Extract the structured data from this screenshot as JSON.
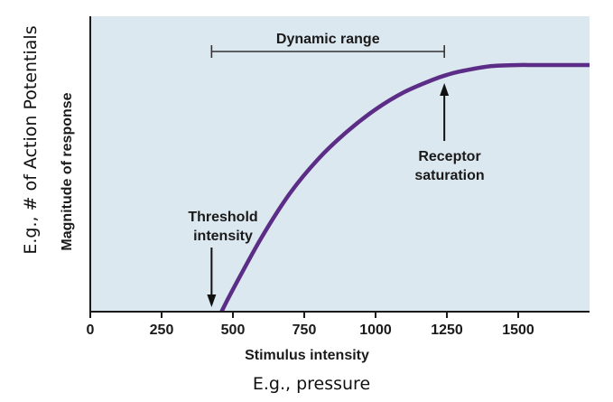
{
  "chart_data": {
    "type": "line",
    "title": "",
    "xlabel": "Stimulus intensity",
    "ylabel": "Magnitude of response",
    "xlim": [
      0,
      1750
    ],
    "ylim": [
      0,
      1
    ],
    "x_ticks": [
      "0",
      "250",
      "500",
      "750",
      "1000",
      "1250",
      "1500"
    ],
    "x_tick_values": [
      0,
      250,
      500,
      750,
      1000,
      1250,
      1500
    ],
    "y_ticks": [],
    "grid": false,
    "series": [
      {
        "color": "#5b2d86",
        "x": [
          460,
          500,
          600,
          700,
          800,
          900,
          1000,
          1100,
          1200,
          1250,
          1300,
          1400,
          1500,
          1550,
          1600,
          1700,
          1750
        ],
        "y": [
          0,
          0.09,
          0.3,
          0.48,
          0.62,
          0.73,
          0.82,
          0.89,
          0.94,
          0.96,
          0.975,
          0.995,
          1.0,
          1.0,
          1.0,
          1.0,
          1.0
        ]
      }
    ],
    "annotations": {
      "dynamic_range": {
        "label": "Dynamic range",
        "x_start": 460,
        "x_end": 1260
      },
      "threshold": {
        "line1": "Threshold",
        "line2": "intensity",
        "x": 460
      },
      "saturation": {
        "line1": "Receptor",
        "line2": "saturation",
        "x": 1260
      }
    },
    "background": "#dce8f0",
    "axis_color": "#1a1a1a"
  },
  "outer_labels": {
    "y_example": "E.g., # of Action Potentials",
    "x_example": "E.g., pressure"
  }
}
